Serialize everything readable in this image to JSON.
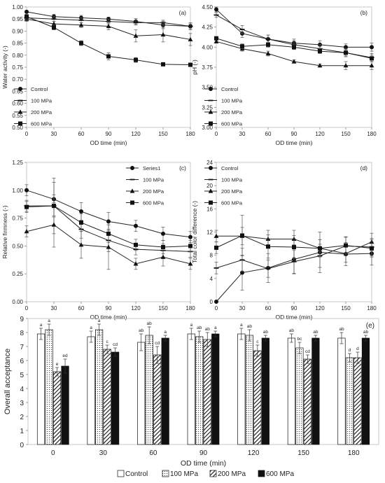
{
  "chart_data": [
    {
      "type": "line",
      "panel_label": "(a)",
      "xlabel": "OD time (min)",
      "ylabel": "Water activity (-)",
      "x": [
        0,
        30,
        60,
        90,
        120,
        150,
        180
      ],
      "xlim": [
        0,
        180
      ],
      "ylim": [
        0.5,
        1.0
      ],
      "yticks": [
        "0.50",
        "0.55",
        "0.60",
        "0.65",
        "0.70",
        "0.75",
        "0.80",
        "0.85",
        "0.90",
        "0.95",
        "1.00"
      ],
      "xticks": [
        "0",
        "30",
        "60",
        "90",
        "120",
        "150",
        "180"
      ],
      "legend_position": "bottom-left",
      "series": [
        {
          "name": "Control",
          "marker": "circle",
          "values": [
            0.98,
            0.96,
            0.955,
            0.95,
            0.94,
            0.925,
            0.92
          ],
          "errors": [
            0.005,
            0.01,
            0.01,
            0.008,
            0.012,
            0.015,
            0.015
          ]
        },
        {
          "name": "100 MPa",
          "marker": "dash",
          "values": [
            0.955,
            0.95,
            0.945,
            0.94,
            0.935,
            0.935,
            0.92
          ],
          "errors": [
            0.01,
            0.01,
            0.01,
            0.01,
            0.01,
            0.01,
            0.01
          ]
        },
        {
          "name": "200 MPa",
          "marker": "triangle",
          "values": [
            0.95,
            0.93,
            0.925,
            0.92,
            0.88,
            0.885,
            0.865
          ],
          "errors": [
            0.01,
            0.01,
            0.01,
            0.015,
            0.025,
            0.03,
            0.025
          ]
        },
        {
          "name": "600 MPa",
          "marker": "square",
          "values": [
            0.96,
            0.915,
            0.85,
            0.795,
            0.78,
            0.762,
            0.76
          ],
          "errors": [
            0.01,
            0.01,
            0.01,
            0.015,
            0.01,
            0.005,
            0.005
          ]
        }
      ]
    },
    {
      "type": "line",
      "panel_label": "(b)",
      "xlabel": "OD time (min)",
      "ylabel": "pH (-)",
      "x": [
        0,
        30,
        60,
        90,
        120,
        150,
        180
      ],
      "xlim": [
        0,
        180
      ],
      "ylim": [
        3.0,
        4.5
      ],
      "yticks": [
        "3.00",
        "3.25",
        "3.50",
        "3.75",
        "4.00",
        "4.25",
        "4.50"
      ],
      "xticks": [
        "0",
        "30",
        "60",
        "90",
        "120",
        "150",
        "180"
      ],
      "legend_position": "bottom-left",
      "series": [
        {
          "name": "Control",
          "marker": "circle",
          "values": [
            4.47,
            4.17,
            4.1,
            4.05,
            4.03,
            4.0,
            4.0
          ],
          "errors": [
            0.03,
            0.05,
            0.05,
            0.05,
            0.05,
            0.04,
            0.05
          ]
        },
        {
          "name": "100 MPa",
          "marker": "dash",
          "values": [
            4.4,
            4.22,
            4.1,
            4.03,
            3.98,
            3.93,
            3.87
          ],
          "errors": [
            0.03,
            0.05,
            0.05,
            0.05,
            0.05,
            0.05,
            0.05
          ]
        },
        {
          "name": "200 MPa",
          "marker": "triangle",
          "values": [
            4.07,
            3.98,
            3.92,
            3.82,
            3.77,
            3.77,
            3.77
          ],
          "errors": [
            0.02,
            0.03,
            0.03,
            0.02,
            0.02,
            0.05,
            0.05
          ]
        },
        {
          "name": "600 MPa",
          "marker": "square",
          "values": [
            4.11,
            4.01,
            4.03,
            4.0,
            3.95,
            3.93,
            3.86
          ],
          "errors": [
            0.02,
            0.03,
            0.03,
            0.03,
            0.03,
            0.04,
            0.04
          ]
        }
      ]
    },
    {
      "type": "line",
      "panel_label": "(c)",
      "xlabel": "OD time (min)",
      "ylabel": "Relative firmness (-)",
      "x": [
        0,
        30,
        60,
        90,
        120,
        150,
        180
      ],
      "xlim": [
        0,
        180
      ],
      "ylim": [
        0.0,
        1.25
      ],
      "yticks": [
        "0.00",
        "0.25",
        "0.50",
        "0.75",
        "1.00",
        "1.25"
      ],
      "xticks": [
        "0",
        "30",
        "60",
        "90",
        "120",
        "150",
        "180"
      ],
      "legend_position": "top-right",
      "series": [
        {
          "name": "Series1",
          "marker": "circle",
          "values": [
            1.0,
            0.92,
            0.81,
            0.72,
            0.68,
            0.61,
            0.58
          ],
          "errors": [
            0.05,
            0.15,
            0.08,
            0.08,
            0.05,
            0.06,
            0.05
          ]
        },
        {
          "name": "100 MPa",
          "marker": "dash",
          "values": [
            0.86,
            0.86,
            0.65,
            0.55,
            0.47,
            0.46,
            0.45
          ],
          "errors": [
            0.05,
            0.25,
            0.08,
            0.1,
            0.05,
            0.06,
            0.05
          ]
        },
        {
          "name": "200 MPa",
          "marker": "triangle",
          "values": [
            0.63,
            0.69,
            0.51,
            0.49,
            0.34,
            0.4,
            0.34
          ],
          "errors": [
            0.05,
            0.2,
            0.12,
            0.2,
            0.05,
            0.08,
            0.05
          ]
        },
        {
          "name": "600 MPa",
          "marker": "square",
          "values": [
            0.85,
            0.86,
            0.71,
            0.61,
            0.51,
            0.49,
            0.5
          ],
          "errors": [
            0.05,
            0.1,
            0.08,
            0.08,
            0.05,
            0.06,
            0.05
          ]
        }
      ]
    },
    {
      "type": "line",
      "panel_label": "(d)",
      "xlabel": "OD time (min)",
      "ylabel": "Total color difference (-)",
      "x": [
        0,
        30,
        60,
        90,
        120,
        150,
        180
      ],
      "xlim": [
        0,
        180
      ],
      "ylim": [
        0,
        24
      ],
      "yticks": [
        "0",
        "4",
        "8",
        "12",
        "16",
        "20",
        "24"
      ],
      "xticks": [
        "0",
        "30",
        "60",
        "90",
        "120",
        "150",
        "180"
      ],
      "legend_position": "top-left",
      "series": [
        {
          "name": "Control",
          "marker": "circle",
          "values": [
            0,
            5.0,
            5.8,
            7.3,
            8.5,
            8.2,
            8.3
          ],
          "errors": [
            0,
            3.0,
            2.5,
            2.5,
            3.5,
            2.0,
            2.0
          ]
        },
        {
          "name": "100 MPa",
          "marker": "dash",
          "values": [
            5.8,
            7.2,
            5.7,
            6.9,
            7.9,
            9.6,
            9.4
          ],
          "errors": [
            1.0,
            2.0,
            1.5,
            2.0,
            2.0,
            1.5,
            1.5
          ]
        },
        {
          "name": "200 MPa",
          "marker": "triangle",
          "values": [
            11.3,
            11.3,
            10.8,
            10.8,
            9.2,
            8.3,
            10.3
          ],
          "errors": [
            1.0,
            1.5,
            1.5,
            1.5,
            1.5,
            1.5,
            1.5
          ]
        },
        {
          "name": "600 MPa",
          "marker": "square",
          "values": [
            9.3,
            11.4,
            9.5,
            9.4,
            9.2,
            9.7,
            9.2
          ],
          "errors": [
            1.0,
            3.5,
            2.0,
            2.0,
            1.5,
            1.5,
            1.5
          ]
        }
      ]
    },
    {
      "type": "bar",
      "panel_label": "(e)",
      "xlabel": "OD time (min)",
      "ylabel": "Overall acceptance",
      "categories": [
        "0",
        "30",
        "60",
        "90",
        "120",
        "150",
        "180"
      ],
      "ylim": [
        0,
        9
      ],
      "yticks": [
        "0",
        "1",
        "2",
        "3",
        "4",
        "5",
        "6",
        "7",
        "8",
        "9"
      ],
      "legend_position": "bottom",
      "series": [
        {
          "name": "Control",
          "pattern": "white",
          "values": [
            7.9,
            7.7,
            7.3,
            7.9,
            7.9,
            7.6,
            7.6
          ],
          "errors": [
            0.4,
            0.4,
            0.6,
            0.4,
            0.4,
            0.3,
            0.4
          ],
          "letters": [
            "a",
            "a",
            "ab",
            "a",
            "a",
            "ab",
            "ab"
          ]
        },
        {
          "name": "100 MPa",
          "pattern": "dotted",
          "values": [
            8.2,
            8.2,
            7.8,
            7.7,
            7.8,
            6.9,
            6.2
          ],
          "errors": [
            0.4,
            0.4,
            0.6,
            0.4,
            0.4,
            0.4,
            0.3
          ],
          "letters": [
            "a",
            "a",
            "ab",
            "ab",
            "ab",
            "bc",
            "d"
          ]
        },
        {
          "name": "200 MPa",
          "pattern": "hatched",
          "values": [
            5.2,
            6.8,
            6.4,
            7.5,
            6.7,
            6.1,
            6.2
          ],
          "errors": [
            0.3,
            0.3,
            0.6,
            0.5,
            0.4,
            0.3,
            0.4
          ],
          "letters": [
            "e",
            "c",
            "cd",
            "ab",
            "c",
            "cd",
            "d"
          ]
        },
        {
          "name": "600 MPa",
          "pattern": "black",
          "values": [
            5.6,
            6.6,
            7.6,
            7.9,
            7.6,
            7.6,
            7.6
          ],
          "errors": [
            0.5,
            0.3,
            0.2,
            0.2,
            0.2,
            0.2,
            0.2
          ],
          "letters": [
            "ed",
            "cd",
            "a",
            "a",
            "ab",
            "ab",
            "ab"
          ]
        }
      ]
    }
  ]
}
